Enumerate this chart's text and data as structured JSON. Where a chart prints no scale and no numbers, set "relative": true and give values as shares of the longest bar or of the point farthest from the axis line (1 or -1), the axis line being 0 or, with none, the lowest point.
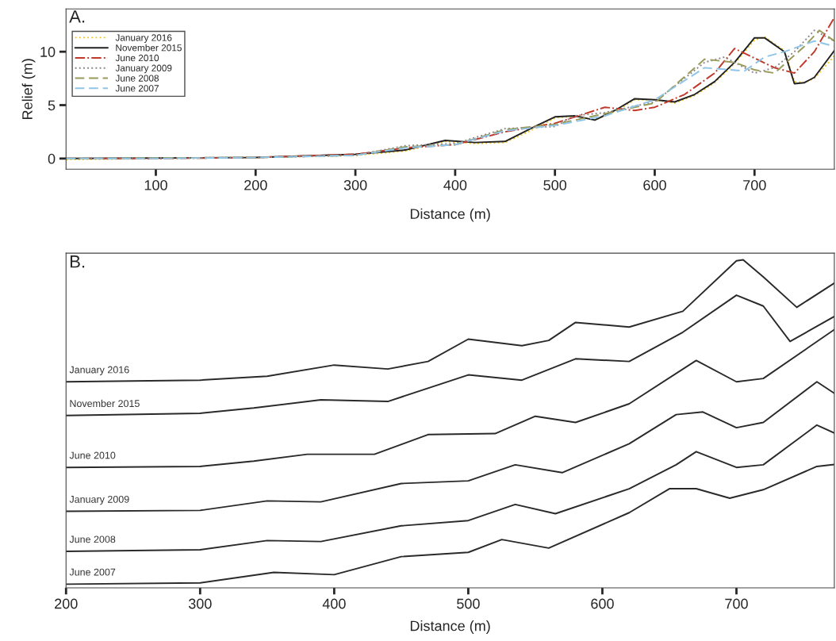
{
  "chart_data": [
    {
      "type": "line",
      "title": "A.",
      "xlabel": "Distance (m)",
      "ylabel": "Relief (m)",
      "xlim": [
        10,
        780
      ],
      "ylim": [
        -1,
        14
      ],
      "xticks": [
        100,
        200,
        300,
        400,
        500,
        600,
        700
      ],
      "yticks": [
        0,
        5,
        10
      ],
      "grid": false,
      "legend": "top left",
      "series": [
        {
          "name": "January 2016",
          "color": "#f2c81e",
          "line_style": "dotted",
          "x": [
            10,
            100,
            200,
            300,
            350,
            390,
            420,
            450,
            480,
            500,
            520,
            540,
            560,
            580,
            600,
            620,
            640,
            660,
            680,
            700,
            710,
            730,
            740,
            750,
            760,
            780
          ],
          "values": [
            -0.1,
            0,
            0.1,
            0.3,
            0.7,
            1.6,
            1.4,
            1.5,
            2.8,
            3.8,
            4,
            3.6,
            4.4,
            5.5,
            5.5,
            5.2,
            5.9,
            7.1,
            8.9,
            11.1,
            11.4,
            10.1,
            7.2,
            7.1,
            7.5,
            9.6
          ]
        },
        {
          "name": "November 2015",
          "color": "#222222",
          "line_style": "solid",
          "x": [
            10,
            100,
            200,
            300,
            350,
            390,
            420,
            450,
            480,
            500,
            520,
            540,
            560,
            580,
            600,
            620,
            640,
            660,
            680,
            700,
            710,
            730,
            740,
            750,
            760,
            780
          ],
          "values": [
            0,
            0.05,
            0.1,
            0.4,
            0.8,
            1.7,
            1.5,
            1.6,
            3,
            3.9,
            4,
            3.6,
            4.5,
            5.6,
            5.5,
            5.3,
            6,
            7.2,
            9,
            11.3,
            11.3,
            10,
            7,
            7.1,
            7.6,
            10.1
          ]
        },
        {
          "name": "June 2010",
          "color": "#c0392b",
          "line_style": "dashdot",
          "x": [
            10,
            100,
            200,
            300,
            350,
            400,
            450,
            500,
            550,
            580,
            600,
            630,
            660,
            680,
            700,
            720,
            740,
            760,
            780
          ],
          "values": [
            0,
            0,
            0.1,
            0.4,
            1,
            1.3,
            2.5,
            3.3,
            4.8,
            4.5,
            4.8,
            6,
            8,
            10.3,
            9.4,
            8.5,
            8,
            10,
            13.2
          ]
        },
        {
          "name": "January 2009",
          "color": "#888888",
          "line_style": "dotted",
          "x": [
            10,
            100,
            200,
            300,
            350,
            400,
            450,
            500,
            520,
            550,
            600,
            650,
            670,
            700,
            720,
            740,
            760,
            780
          ],
          "values": [
            0,
            0.05,
            0.1,
            0.3,
            1.2,
            1.4,
            2.8,
            3,
            4,
            4.3,
            5.3,
            9,
            9.5,
            8,
            8.5,
            10,
            12,
            11
          ]
        },
        {
          "name": "June 2008",
          "color": "#9a9a5a",
          "line_style": "dashed",
          "x": [
            10,
            100,
            200,
            300,
            350,
            400,
            450,
            500,
            550,
            600,
            650,
            680,
            700,
            720,
            750,
            765,
            780
          ],
          "values": [
            0,
            0.05,
            0.1,
            0.3,
            1.1,
            1.3,
            2.7,
            3.2,
            4.2,
            5.2,
            9.3,
            9,
            8.3,
            8,
            10.5,
            12,
            11
          ]
        },
        {
          "name": "June 2007",
          "color": "#8ec5e8",
          "line_style": "dashed",
          "x": [
            10,
            100,
            200,
            300,
            350,
            400,
            450,
            500,
            550,
            600,
            650,
            690,
            710,
            730,
            760,
            780
          ],
          "values": [
            0,
            0,
            0.1,
            0.3,
            1,
            1.3,
            2.6,
            3.1,
            4,
            5.5,
            8.5,
            8.2,
            9.5,
            10,
            11,
            10.5
          ]
        }
      ]
    },
    {
      "type": "line",
      "title": "B.",
      "xlabel": "Distance (m)",
      "xlim": [
        200,
        773
      ],
      "xticks": [
        200,
        300,
        400,
        500,
        600,
        700
      ],
      "relative": true,
      "tick_labels": "x",
      "grid": false,
      "legend": false,
      "series": [
        {
          "name": "January 2016",
          "color": "#2a2a2a",
          "x": [
            200,
            300,
            350,
            400,
            440,
            470,
            500,
            540,
            560,
            580,
            620,
            660,
            700,
            705,
            720,
            745,
            773
          ],
          "values": [
            0.628,
            0.633,
            0.645,
            0.679,
            0.667,
            0.69,
            0.758,
            0.738,
            0.754,
            0.809,
            0.795,
            0.843,
            0.997,
            1.0,
            0.948,
            0.855,
            0.929
          ]
        },
        {
          "name": "November 2015",
          "color": "#2a2a2a",
          "x": [
            200,
            300,
            340,
            390,
            440,
            500,
            540,
            580,
            620,
            660,
            700,
            720,
            740,
            773
          ],
          "values": [
            0.525,
            0.532,
            0.548,
            0.573,
            0.568,
            0.649,
            0.633,
            0.698,
            0.69,
            0.779,
            0.892,
            0.859,
            0.751,
            0.827
          ]
        },
        {
          "name": "June 2010",
          "color": "#2a2a2a",
          "x": [
            200,
            300,
            340,
            380,
            430,
            470,
            520,
            550,
            580,
            620,
            670,
            700,
            720,
            773
          ],
          "values": [
            0.367,
            0.37,
            0.386,
            0.407,
            0.407,
            0.467,
            0.47,
            0.523,
            0.504,
            0.561,
            0.693,
            0.628,
            0.638,
            0.787
          ]
        },
        {
          "name": "January 2009",
          "color": "#2a2a2a",
          "x": [
            200,
            300,
            350,
            390,
            450,
            500,
            535,
            570,
            620,
            655,
            675,
            700,
            720,
            760,
            773
          ],
          "values": [
            0.233,
            0.236,
            0.265,
            0.262,
            0.318,
            0.326,
            0.375,
            0.351,
            0.439,
            0.528,
            0.536,
            0.488,
            0.504,
            0.628,
            0.593
          ]
        },
        {
          "name": "June 2008",
          "color": "#2a2a2a",
          "x": [
            200,
            300,
            350,
            390,
            450,
            500,
            535,
            565,
            620,
            655,
            670,
            700,
            720,
            760,
            773
          ],
          "values": [
            0.111,
            0.116,
            0.144,
            0.141,
            0.189,
            0.205,
            0.254,
            0.226,
            0.302,
            0.375,
            0.415,
            0.367,
            0.375,
            0.496,
            0.472
          ]
        },
        {
          "name": "June 2007",
          "color": "#2a2a2a",
          "x": [
            200,
            300,
            355,
            400,
            450,
            500,
            525,
            560,
            620,
            650,
            670,
            695,
            720,
            760,
            773
          ],
          "values": [
            0.011,
            0.015,
            0.047,
            0.04,
            0.095,
            0.108,
            0.147,
            0.121,
            0.229,
            0.302,
            0.302,
            0.273,
            0.299,
            0.37,
            0.376
          ]
        }
      ]
    }
  ]
}
